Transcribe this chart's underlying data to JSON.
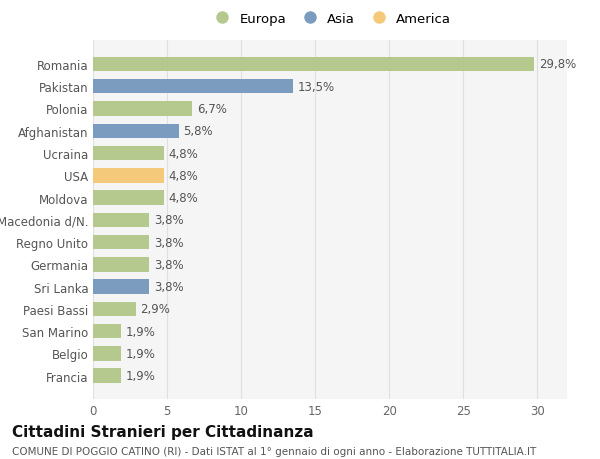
{
  "categories": [
    "Francia",
    "Belgio",
    "San Marino",
    "Paesi Bassi",
    "Sri Lanka",
    "Germania",
    "Regno Unito",
    "Macedonia d/N.",
    "Moldova",
    "USA",
    "Ucraina",
    "Afghanistan",
    "Polonia",
    "Pakistan",
    "Romania"
  ],
  "values": [
    1.9,
    1.9,
    1.9,
    2.9,
    3.8,
    3.8,
    3.8,
    3.8,
    4.8,
    4.8,
    4.8,
    5.8,
    6.7,
    13.5,
    29.8
  ],
  "labels": [
    "1,9%",
    "1,9%",
    "1,9%",
    "2,9%",
    "3,8%",
    "3,8%",
    "3,8%",
    "3,8%",
    "4,8%",
    "4,8%",
    "4,8%",
    "5,8%",
    "6,7%",
    "13,5%",
    "29,8%"
  ],
  "colors": [
    "#b5c98e",
    "#b5c98e",
    "#b5c98e",
    "#b5c98e",
    "#7b9bbf",
    "#b5c98e",
    "#b5c98e",
    "#b5c98e",
    "#b5c98e",
    "#f5c97a",
    "#b5c98e",
    "#7b9bbf",
    "#b5c98e",
    "#7b9bbf",
    "#b5c98e"
  ],
  "legend_labels": [
    "Europa",
    "Asia",
    "America"
  ],
  "legend_colors": [
    "#b5c98e",
    "#7b9bbf",
    "#f5c97a"
  ],
  "title": "Cittadini Stranieri per Cittadinanza",
  "subtitle": "COMUNE DI POGGIO CATINO (RI) - Dati ISTAT al 1° gennaio di ogni anno - Elaborazione TUTTITALIA.IT",
  "xlim": [
    0,
    32
  ],
  "xticks": [
    0,
    5,
    10,
    15,
    20,
    25,
    30
  ],
  "background_color": "#ffffff",
  "plot_background": "#f5f5f5",
  "grid_color": "#e0e0e0",
  "bar_height": 0.65,
  "title_fontsize": 11,
  "subtitle_fontsize": 7.5,
  "label_fontsize": 8.5,
  "tick_fontsize": 8.5,
  "legend_fontsize": 9.5
}
